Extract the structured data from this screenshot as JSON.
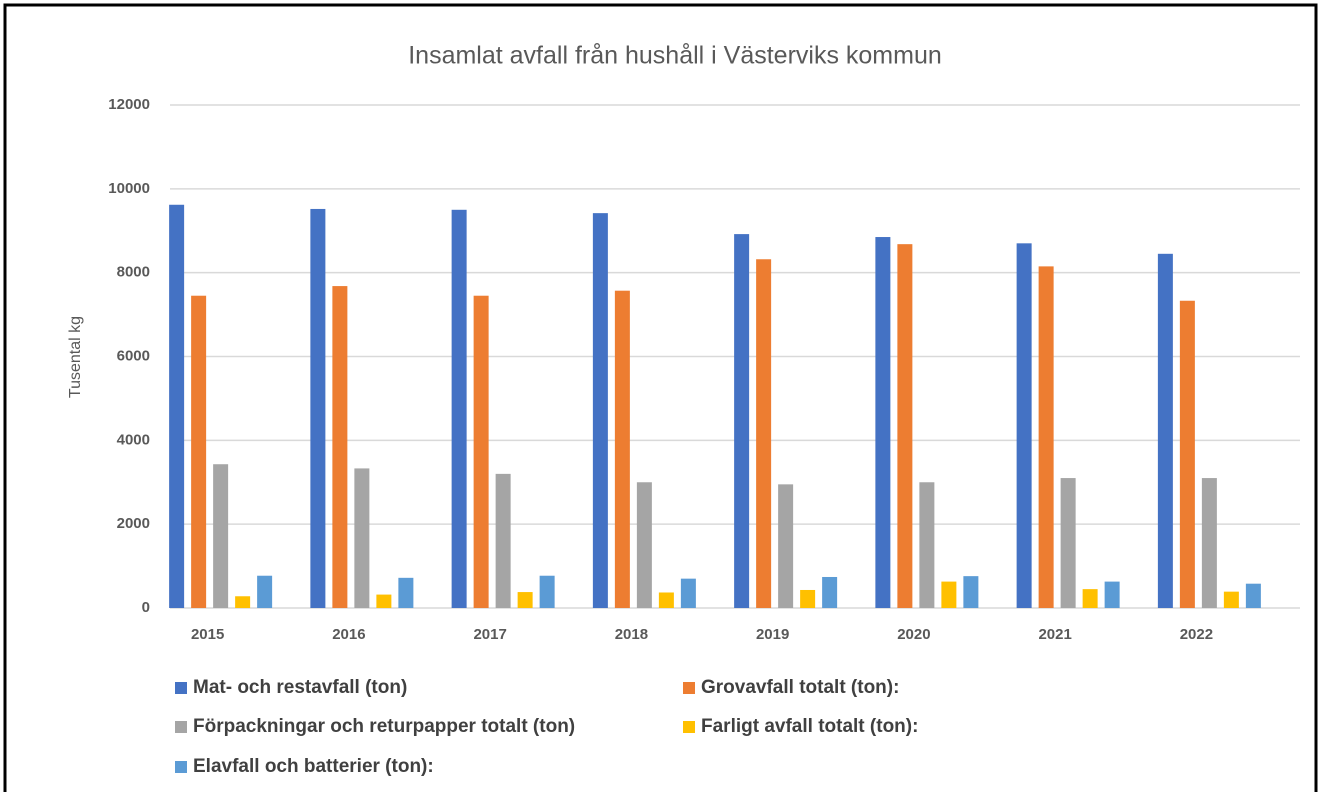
{
  "chart_data": {
    "type": "bar",
    "title": "Insamlat avfall från hushåll i Västerviks kommun",
    "y_label": "Tusental kg",
    "categories": [
      "2015",
      "2016",
      "2017",
      "2018",
      "2019",
      "2020",
      "2021",
      "2022"
    ],
    "series": [
      {
        "name": "Mat- och restavfall (ton)",
        "color": "#4472c4",
        "values": [
          9620,
          9520,
          9500,
          9420,
          8920,
          8850,
          8700,
          8450
        ]
      },
      {
        "name": "Grovavfall totalt (ton):",
        "color": "#ed7d31",
        "values": [
          7450,
          7680,
          7450,
          7570,
          8320,
          8680,
          8150,
          7330
        ]
      },
      {
        "name": "Förpackningar och returpapper totalt (ton)",
        "color": "#a5a5a5",
        "values": [
          3430,
          3330,
          3200,
          3000,
          2950,
          3000,
          3100,
          3100
        ]
      },
      {
        "name": "Farligt avfall totalt (ton):",
        "color": "#ffc000",
        "values": [
          280,
          320,
          380,
          370,
          430,
          630,
          450,
          390
        ]
      },
      {
        "name": "Elavfall och batterier (ton):",
        "color": "#5b9bd5",
        "values": [
          770,
          720,
          770,
          700,
          740,
          760,
          630,
          580
        ]
      }
    ],
    "ylim": [
      0,
      12000
    ],
    "yticks": [
      0,
      2000,
      4000,
      6000,
      8000,
      10000,
      12000
    ],
    "grid": true
  }
}
